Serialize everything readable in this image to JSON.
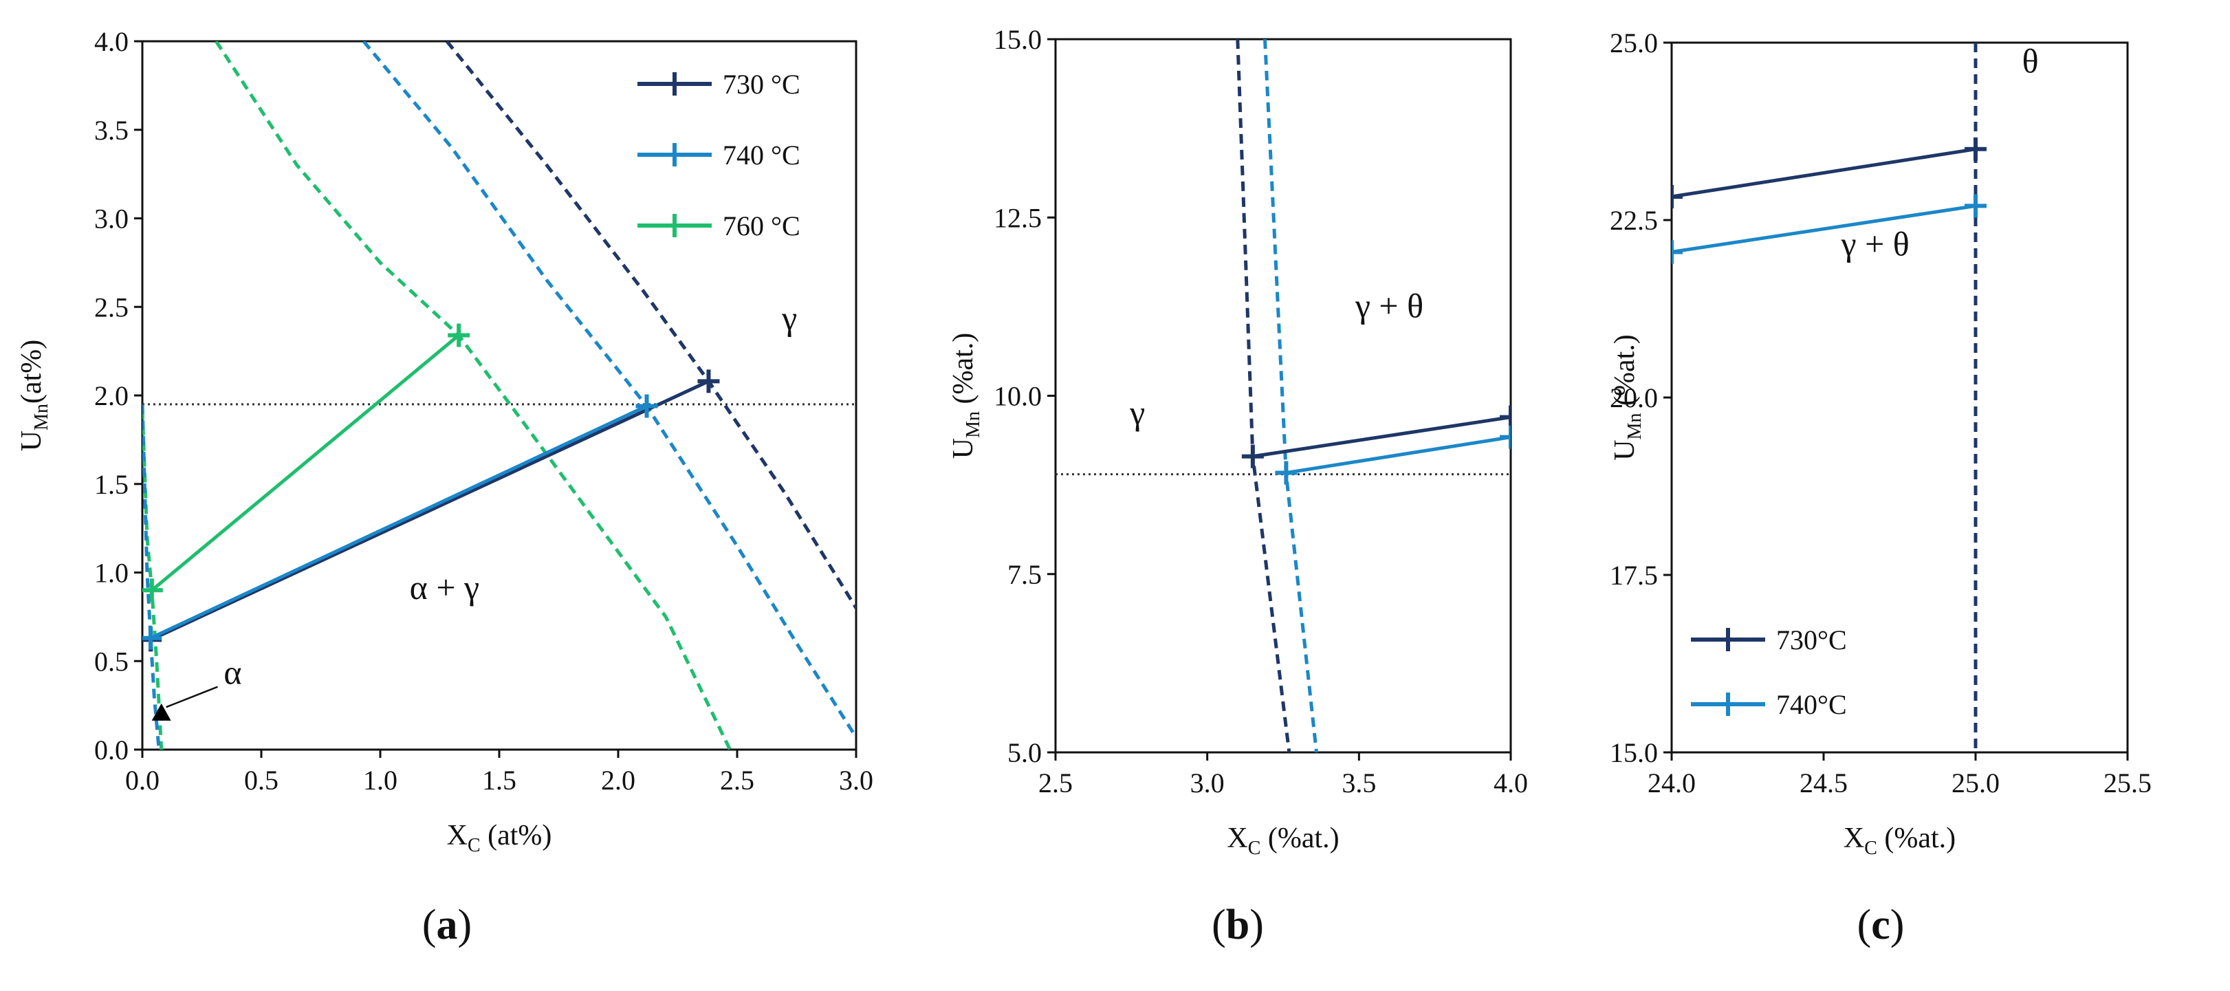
{
  "colors": {
    "c730": "#1f3668",
    "c740": "#1b87c8",
    "c760": "#1fbe6e",
    "axis": "#111111",
    "ref": "#333333"
  },
  "chart_data": [
    {
      "id": "a",
      "type": "line",
      "panel_label": [
        "(",
        "a",
        ")"
      ],
      "xlabel": {
        "main": "X",
        "sub": "C",
        "rest": " (at%)"
      },
      "ylabel": {
        "main": "U",
        "sub": "Mn",
        "rest": "(at%)"
      },
      "xlim": [
        0,
        3
      ],
      "ylim": [
        0,
        4
      ],
      "xticks": [
        0,
        0.5,
        1,
        1.5,
        2,
        2.5,
        3
      ],
      "yticks": [
        0,
        0.5,
        1,
        1.5,
        2,
        2.5,
        3,
        3.5,
        4
      ],
      "tick_decimals": 1,
      "grid": false,
      "legend_position": "top-right",
      "legend": [
        {
          "label": "730 °C",
          "color_key": "c730"
        },
        {
          "label": "740 °C",
          "color_key": "c740"
        },
        {
          "label": "760 °C",
          "color_key": "c760"
        }
      ],
      "reference_lines": [
        {
          "axis": "y",
          "value": 1.95
        }
      ],
      "phase_boundaries": [
        {
          "series": "760 °C",
          "color_key": "c760",
          "points": [
            [
              0.31,
              4.0
            ],
            [
              0.65,
              3.3
            ],
            [
              1.0,
              2.75
            ],
            [
              1.33,
              2.34
            ],
            [
              1.6,
              1.85
            ],
            [
              1.9,
              1.3
            ],
            [
              2.2,
              0.75
            ],
            [
              2.47,
              0.0
            ]
          ]
        },
        {
          "series": "740 °C",
          "color_key": "c740",
          "points": [
            [
              0.93,
              4.0
            ],
            [
              1.3,
              3.4
            ],
            [
              1.7,
              2.65
            ],
            [
              2.12,
              1.94
            ],
            [
              2.5,
              1.15
            ],
            [
              2.75,
              0.6
            ],
            [
              3.0,
              0.07
            ]
          ]
        },
        {
          "series": "730 °C",
          "color_key": "c730",
          "points": [
            [
              1.28,
              4.0
            ],
            [
              1.7,
              3.3
            ],
            [
              2.1,
              2.6
            ],
            [
              2.38,
              2.08
            ],
            [
              2.7,
              1.45
            ],
            [
              3.0,
              0.8
            ]
          ]
        },
        {
          "series": "760 °C",
          "color_key": "c760",
          "points": [
            [
              0.0,
              1.92
            ],
            [
              0.02,
              1.2
            ],
            [
              0.04,
              0.9
            ],
            [
              0.06,
              0.5
            ],
            [
              0.08,
              0.0
            ]
          ]
        },
        {
          "series": "740 °C",
          "color_key": "c740",
          "points": [
            [
              0.0,
              1.95
            ],
            [
              0.02,
              1.0
            ],
            [
              0.035,
              0.63
            ],
            [
              0.05,
              0.3
            ],
            [
              0.07,
              0.0
            ]
          ]
        }
      ],
      "tie_lines": [
        {
          "series": "730 °C",
          "color_key": "c730",
          "x": [
            0.035,
            2.38
          ],
          "y": [
            0.62,
            2.08
          ]
        },
        {
          "series": "740 °C",
          "color_key": "c740",
          "x": [
            0.035,
            2.12
          ],
          "y": [
            0.63,
            1.94
          ]
        },
        {
          "series": "760 °C",
          "color_key": "c760",
          "x": [
            0.04,
            1.33
          ],
          "y": [
            0.9,
            2.34
          ]
        }
      ],
      "triangle_marker": {
        "x": 0.08,
        "y": 0.21
      },
      "annotations": [
        {
          "text": "γ",
          "x": 2.72,
          "y": 2.37,
          "class": "region"
        },
        {
          "text": "α + γ",
          "x": 1.27,
          "y": 0.85,
          "class": "region"
        },
        {
          "text": "α",
          "x": 0.38,
          "y": 0.37,
          "class": "region",
          "arrow_to": [
            0.1,
            0.24
          ]
        }
      ]
    },
    {
      "id": "b",
      "type": "line",
      "panel_label": [
        "(",
        "b",
        ")"
      ],
      "xlabel": {
        "main": "X",
        "sub": "C",
        "rest": " (%at.)"
      },
      "ylabel": {
        "main": "U",
        "sub": "Mn",
        "rest": " (%at.)"
      },
      "xlim": [
        2.5,
        4.0
      ],
      "ylim": [
        5.0,
        15.0
      ],
      "xticks": [
        2.5,
        3.0,
        3.5,
        4.0
      ],
      "yticks": [
        5.0,
        7.5,
        10.0,
        12.5,
        15.0
      ],
      "tick_decimals": 1,
      "grid": false,
      "reference_lines": [
        {
          "axis": "y",
          "value": 8.9
        }
      ],
      "phase_boundaries": [
        {
          "series": "730 °C",
          "color_key": "c730",
          "points": [
            [
              3.1,
              15.0
            ],
            [
              3.15,
              9.15
            ],
            [
              3.27,
              5.0
            ]
          ]
        },
        {
          "series": "740 °C",
          "color_key": "c740",
          "points": [
            [
              3.19,
              15.0
            ],
            [
              3.26,
              8.9
            ],
            [
              3.36,
              5.0
            ]
          ]
        }
      ],
      "tie_lines": [
        {
          "series": "730 °C",
          "color_key": "c730",
          "x": [
            3.15,
            4.0
          ],
          "y": [
            9.15,
            9.7
          ]
        },
        {
          "series": "740 °C",
          "color_key": "c740",
          "x": [
            3.26,
            4.0
          ],
          "y": [
            8.92,
            9.42
          ]
        }
      ],
      "annotations": [
        {
          "text": "γ + θ",
          "x": 3.6,
          "y": 11.1,
          "class": "region"
        },
        {
          "text": "γ",
          "x": 2.77,
          "y": 9.6,
          "class": "region"
        }
      ]
    },
    {
      "id": "c",
      "type": "line",
      "panel_label": [
        "(",
        "c",
        ")"
      ],
      "xlabel": {
        "main": "X",
        "sub": "C",
        "rest": " (%at.)"
      },
      "ylabel": {
        "main": "U",
        "sub": "Mn",
        "rest": " (%at.)"
      },
      "xlim": [
        24.0,
        25.5
      ],
      "ylim": [
        15.0,
        25.0
      ],
      "xticks": [
        24.0,
        24.5,
        25.0,
        25.5
      ],
      "yticks": [
        15.0,
        17.5,
        20.0,
        22.5,
        25.0
      ],
      "tick_decimals": 1,
      "grid": false,
      "legend_position": "bottom-left",
      "legend": [
        {
          "label": "730°C",
          "color_key": "c730"
        },
        {
          "label": "740°C",
          "color_key": "c740"
        }
      ],
      "phase_boundaries": [
        {
          "series": "730 °C",
          "color_key": "c730",
          "points": [
            [
              25.0,
              25.0
            ],
            [
              25.0,
              15.0
            ]
          ]
        }
      ],
      "tie_lines": [
        {
          "series": "730 °C",
          "color_key": "c730",
          "x": [
            24.0,
            25.0
          ],
          "y": [
            22.83,
            23.5
          ]
        },
        {
          "series": "740 °C",
          "color_key": "c740",
          "x": [
            24.0,
            25.0
          ],
          "y": [
            22.05,
            22.7
          ]
        }
      ],
      "annotations": [
        {
          "text": "θ",
          "x": 25.18,
          "y": 24.58,
          "class": "region"
        },
        {
          "text": "γ + θ",
          "x": 24.67,
          "y": 22.0,
          "class": "region"
        }
      ]
    }
  ]
}
